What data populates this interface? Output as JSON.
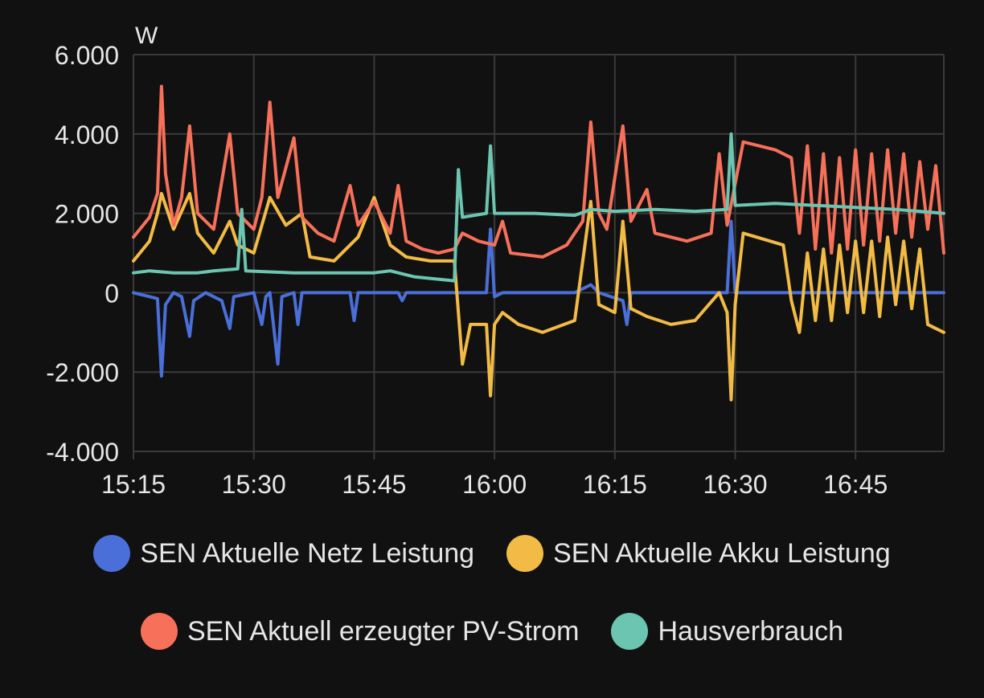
{
  "chart_data": {
    "type": "line",
    "unit": "W",
    "x_ticks": [
      "15:15",
      "15:30",
      "15:45",
      "16:00",
      "16:15",
      "16:30",
      "16:45"
    ],
    "xlim": [
      "15:15",
      "16:56"
    ],
    "y_ticks": [
      6000,
      4000,
      2000,
      0,
      -2000,
      -4000
    ],
    "y_tick_labels": [
      "6.000",
      "4.000",
      "2.000",
      "0",
      "-2.000",
      "-4.000"
    ],
    "ylim": [
      -4000,
      6000
    ],
    "grid": true,
    "legend_position": "bottom",
    "series": [
      {
        "name": "SEN Aktuelle Netz Leistung",
        "color": "#4a6fd8",
        "points": [
          [
            "15:15",
            0
          ],
          [
            "15:17",
            -100
          ],
          [
            "15:18",
            -150
          ],
          [
            "15:18:30",
            -2100
          ],
          [
            "15:19",
            -300
          ],
          [
            "15:20",
            0
          ],
          [
            "15:21",
            -100
          ],
          [
            "15:22",
            -1100
          ],
          [
            "15:22:30",
            -200
          ],
          [
            "15:24",
            0
          ],
          [
            "15:26",
            -200
          ],
          [
            "15:27",
            -900
          ],
          [
            "15:27:30",
            -100
          ],
          [
            "15:30",
            0
          ],
          [
            "15:31",
            -800
          ],
          [
            "15:31:30",
            -100
          ],
          [
            "15:32",
            0
          ],
          [
            "15:33",
            -1800
          ],
          [
            "15:33:30",
            -100
          ],
          [
            "15:35",
            0
          ],
          [
            "15:35:30",
            -800
          ],
          [
            "15:36",
            0
          ],
          [
            "15:42",
            0
          ],
          [
            "15:42:30",
            -700
          ],
          [
            "15:43",
            0
          ],
          [
            "15:48",
            0
          ],
          [
            "15:48:30",
            -200
          ],
          [
            "15:49",
            0
          ],
          [
            "15:55",
            0
          ],
          [
            "15:59",
            0
          ],
          [
            "15:59:30",
            1600
          ],
          [
            "16:00",
            -100
          ],
          [
            "16:01",
            0
          ],
          [
            "16:10",
            0
          ],
          [
            "16:12",
            200
          ],
          [
            "16:13",
            0
          ],
          [
            "16:16",
            -200
          ],
          [
            "16:16:30",
            -800
          ],
          [
            "16:17",
            0
          ],
          [
            "16:29",
            0
          ],
          [
            "16:29:30",
            1800
          ],
          [
            "16:30",
            0
          ],
          [
            "16:45",
            0
          ],
          [
            "16:56",
            0
          ]
        ]
      },
      {
        "name": "SEN Aktuelle Akku Leistung",
        "color": "#f2bb45",
        "points": [
          [
            "15:15",
            800
          ],
          [
            "15:17",
            1300
          ],
          [
            "15:18",
            2000
          ],
          [
            "15:18:30",
            2500
          ],
          [
            "15:20",
            1600
          ],
          [
            "15:22",
            2500
          ],
          [
            "15:23",
            1500
          ],
          [
            "15:25",
            1000
          ],
          [
            "15:27",
            1800
          ],
          [
            "15:28",
            1200
          ],
          [
            "15:30",
            1000
          ],
          [
            "15:32",
            2400
          ],
          [
            "15:34",
            1700
          ],
          [
            "15:36",
            2000
          ],
          [
            "15:37",
            900
          ],
          [
            "15:40",
            800
          ],
          [
            "15:43",
            1400
          ],
          [
            "15:45",
            2400
          ],
          [
            "15:47",
            1200
          ],
          [
            "15:49",
            900
          ],
          [
            "15:52",
            800
          ],
          [
            "15:55",
            800
          ],
          [
            "15:56",
            -1800
          ],
          [
            "15:57",
            -800
          ],
          [
            "15:59",
            -800
          ],
          [
            "15:59:30",
            -2600
          ],
          [
            "16:00",
            -800
          ],
          [
            "16:01",
            -500
          ],
          [
            "16:03",
            -800
          ],
          [
            "16:06",
            -1000
          ],
          [
            "16:10",
            -700
          ],
          [
            "16:12",
            2300
          ],
          [
            "16:13",
            -300
          ],
          [
            "16:15",
            -500
          ],
          [
            "16:16",
            1800
          ],
          [
            "16:17",
            -400
          ],
          [
            "16:19",
            -600
          ],
          [
            "16:22",
            -800
          ],
          [
            "16:25",
            -700
          ],
          [
            "16:28",
            0
          ],
          [
            "16:29",
            -500
          ],
          [
            "16:29:30",
            -2700
          ],
          [
            "16:30",
            -300
          ],
          [
            "16:31",
            1500
          ],
          [
            "16:36",
            1200
          ],
          [
            "16:37",
            -200
          ],
          [
            "16:38",
            -1000
          ],
          [
            "16:39",
            1000
          ],
          [
            "16:40",
            -700
          ],
          [
            "16:41",
            1100
          ],
          [
            "16:42",
            -700
          ],
          [
            "16:43",
            1200
          ],
          [
            "16:44",
            -500
          ],
          [
            "16:45",
            1300
          ],
          [
            "16:46",
            -500
          ],
          [
            "16:47",
            1300
          ],
          [
            "16:48",
            -600
          ],
          [
            "16:49",
            1400
          ],
          [
            "16:50",
            -300
          ],
          [
            "16:51",
            1300
          ],
          [
            "16:52",
            -400
          ],
          [
            "16:53",
            1100
          ],
          [
            "16:54",
            -800
          ],
          [
            "16:55",
            -900
          ],
          [
            "16:56",
            -1000
          ]
        ]
      },
      {
        "name": "SEN Aktuell erzeugter PV-Strom",
        "color": "#f7705a",
        "points": [
          [
            "15:15",
            1400
          ],
          [
            "15:17",
            1900
          ],
          [
            "15:18",
            2500
          ],
          [
            "15:18:30",
            5200
          ],
          [
            "15:19",
            3000
          ],
          [
            "15:20",
            1700
          ],
          [
            "15:21",
            2400
          ],
          [
            "15:22",
            4200
          ],
          [
            "15:23",
            2000
          ],
          [
            "15:25",
            1600
          ],
          [
            "15:27",
            4000
          ],
          [
            "15:28",
            2000
          ],
          [
            "15:30",
            1600
          ],
          [
            "15:31",
            2400
          ],
          [
            "15:32",
            4800
          ],
          [
            "15:33",
            2400
          ],
          [
            "15:35",
            3900
          ],
          [
            "15:36",
            1900
          ],
          [
            "15:38",
            1500
          ],
          [
            "15:40",
            1300
          ],
          [
            "15:42",
            2700
          ],
          [
            "15:43",
            1700
          ],
          [
            "15:45",
            2300
          ],
          [
            "15:47",
            1500
          ],
          [
            "15:48",
            2700
          ],
          [
            "15:49",
            1300
          ],
          [
            "15:51",
            1100
          ],
          [
            "15:53",
            1000
          ],
          [
            "15:55",
            1100
          ],
          [
            "15:56",
            1500
          ],
          [
            "15:58",
            1300
          ],
          [
            "16:00",
            1200
          ],
          [
            "16:01",
            1800
          ],
          [
            "16:02",
            1000
          ],
          [
            "16:06",
            900
          ],
          [
            "16:09",
            1200
          ],
          [
            "16:11",
            1800
          ],
          [
            "16:12",
            4300
          ],
          [
            "16:13",
            2000
          ],
          [
            "16:14",
            1600
          ],
          [
            "16:16",
            4200
          ],
          [
            "16:17",
            1800
          ],
          [
            "16:19",
            2600
          ],
          [
            "16:20",
            1500
          ],
          [
            "16:24",
            1300
          ],
          [
            "16:27",
            1500
          ],
          [
            "16:28",
            3500
          ],
          [
            "16:29",
            1700
          ],
          [
            "16:31",
            3800
          ],
          [
            "16:35",
            3600
          ],
          [
            "16:37",
            3400
          ],
          [
            "16:38",
            1500
          ],
          [
            "16:39",
            3700
          ],
          [
            "16:40",
            1100
          ],
          [
            "16:41",
            3500
          ],
          [
            "16:42",
            1000
          ],
          [
            "16:43",
            3400
          ],
          [
            "16:44",
            1100
          ],
          [
            "16:45",
            3600
          ],
          [
            "16:46",
            1200
          ],
          [
            "16:47",
            3500
          ],
          [
            "16:48",
            1300
          ],
          [
            "16:49",
            3600
          ],
          [
            "16:50",
            1500
          ],
          [
            "16:51",
            3500
          ],
          [
            "16:52",
            1400
          ],
          [
            "16:53",
            3300
          ],
          [
            "16:54",
            1600
          ],
          [
            "16:55",
            3200
          ],
          [
            "16:56",
            1000
          ]
        ]
      },
      {
        "name": "Hausverbrauch",
        "color": "#6cc5b0",
        "points": [
          [
            "15:15",
            500
          ],
          [
            "15:17",
            550
          ],
          [
            "15:20",
            500
          ],
          [
            "15:23",
            500
          ],
          [
            "15:25",
            550
          ],
          [
            "15:28",
            600
          ],
          [
            "15:28:30",
            2100
          ],
          [
            "15:29",
            550
          ],
          [
            "15:35",
            500
          ],
          [
            "15:40",
            500
          ],
          [
            "15:45",
            500
          ],
          [
            "15:47",
            550
          ],
          [
            "15:50",
            400
          ],
          [
            "15:55",
            300
          ],
          [
            "15:55:30",
            3100
          ],
          [
            "15:56",
            1900
          ],
          [
            "15:59",
            2000
          ],
          [
            "15:59:30",
            3700
          ],
          [
            "16:00",
            2000
          ],
          [
            "16:05",
            2000
          ],
          [
            "16:10",
            1950
          ],
          [
            "16:12",
            2100
          ],
          [
            "16:15",
            2050
          ],
          [
            "16:20",
            2100
          ],
          [
            "16:25",
            2050
          ],
          [
            "16:29",
            2100
          ],
          [
            "16:29:30",
            4000
          ],
          [
            "16:30",
            2200
          ],
          [
            "16:35",
            2250
          ],
          [
            "16:40",
            2200
          ],
          [
            "16:45",
            2150
          ],
          [
            "16:50",
            2100
          ],
          [
            "16:56",
            2000
          ]
        ]
      }
    ]
  }
}
